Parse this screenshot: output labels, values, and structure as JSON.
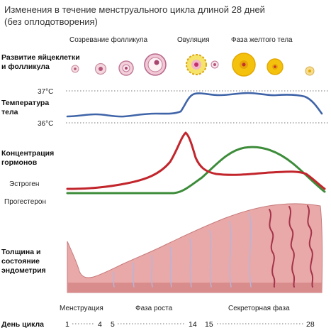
{
  "title_line1": "Изменения в течение менструального цикла длиной 28 дней",
  "title_line2": "(без оплодотворения)",
  "phases_top": {
    "follicle": "Созревание фолликула",
    "ovulation": "Овуляция",
    "luteal": "Фаза желтого тела"
  },
  "rows": {
    "follicle_line1": "Развитие яйцеклетки",
    "follicle_line2": "и фолликула",
    "temp_line1": "Температура",
    "temp_line2": "тела",
    "hormone_line1": "Концентрация",
    "hormone_line2": "гормонов",
    "endo_line1": "Толщина и",
    "endo_line2": "состояние",
    "endo_line3": "эндометрия",
    "day_label": "День цикла"
  },
  "temperature": {
    "high": "37°C",
    "low": "36°C"
  },
  "hormones": {
    "estrogen": "Эстроген",
    "progesterone": "Прогестерон"
  },
  "phases_bottom": {
    "menstruation": "Менструация",
    "growth": "Фаза роста",
    "secretory": "Секреторная фаза"
  },
  "days": [
    "1",
    "4",
    "5",
    "14",
    "15",
    "28"
  ],
  "colors": {
    "temperature": "#3f64a8",
    "estrogen": "#c2252c",
    "progesterone": "#3d8c3a",
    "endometrium": "#e9a9a8",
    "corpus_luteum": "#f4c20d"
  }
}
